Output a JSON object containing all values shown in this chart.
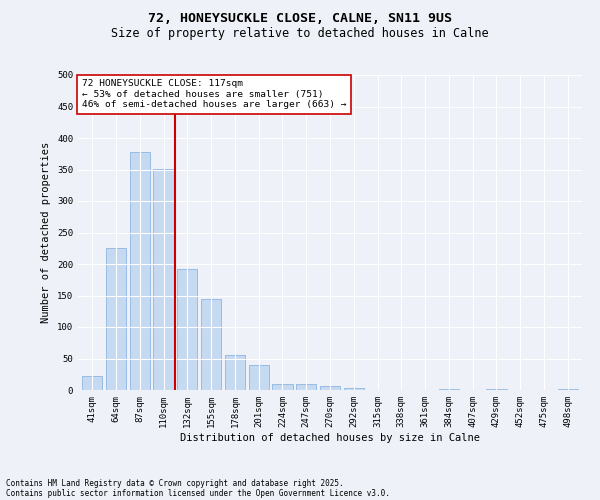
{
  "title1": "72, HONEYSUCKLE CLOSE, CALNE, SN11 9US",
  "title2": "Size of property relative to detached houses in Calne",
  "xlabel": "Distribution of detached houses by size in Calne",
  "ylabel": "Number of detached properties",
  "categories": [
    "41sqm",
    "64sqm",
    "87sqm",
    "110sqm",
    "132sqm",
    "155sqm",
    "178sqm",
    "201sqm",
    "224sqm",
    "247sqm",
    "270sqm",
    "292sqm",
    "315sqm",
    "338sqm",
    "361sqm",
    "384sqm",
    "407sqm",
    "429sqm",
    "452sqm",
    "475sqm",
    "498sqm"
  ],
  "values": [
    22,
    225,
    378,
    351,
    192,
    145,
    55,
    40,
    10,
    10,
    6,
    3,
    0,
    0,
    0,
    1,
    0,
    2,
    0,
    0,
    1
  ],
  "bar_color": "#c5d9f0",
  "bar_edge_color": "#8db4e2",
  "vline_x": 3.5,
  "vline_color": "#cc0000",
  "annotation_title": "72 HONEYSUCKLE CLOSE: 117sqm",
  "annotation_line1": "← 53% of detached houses are smaller (751)",
  "annotation_line2": "46% of semi-detached houses are larger (663) →",
  "annotation_box_color": "#ffffff",
  "annotation_box_edge": "#cc0000",
  "ylim": [
    0,
    500
  ],
  "yticks": [
    0,
    50,
    100,
    150,
    200,
    250,
    300,
    350,
    400,
    450,
    500
  ],
  "footer1": "Contains HM Land Registry data © Crown copyright and database right 2025.",
  "footer2": "Contains public sector information licensed under the Open Government Licence v3.0.",
  "bg_color": "#eef2f8",
  "grid_color": "#ffffff",
  "title_fontsize": 9.5,
  "subtitle_fontsize": 8.5,
  "tick_fontsize": 6.5,
  "ylabel_fontsize": 7.5,
  "xlabel_fontsize": 7.5,
  "annotation_fontsize": 6.8,
  "footer_fontsize": 5.5
}
